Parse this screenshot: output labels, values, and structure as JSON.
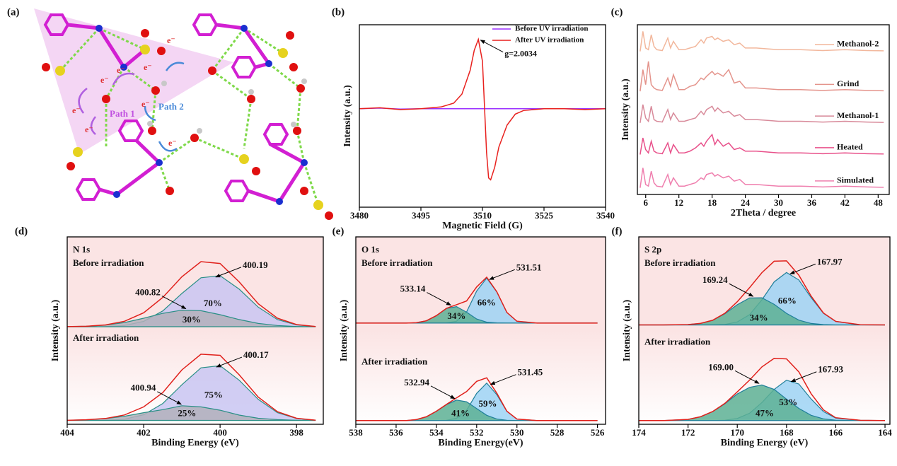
{
  "panel_a": {
    "label": "(a)",
    "path_1": "Path 1",
    "path_2": "Path 2",
    "electron": "e⁻"
  },
  "chart_data": [
    {
      "panel": "(b)",
      "type": "line",
      "xlabel": "Magnetic Field (G)",
      "ylabel": "Intensity (a.u.)",
      "xlim": [
        3480,
        3540
      ],
      "xticks": [
        3480,
        3495,
        3510,
        3525,
        3540
      ],
      "ylim": [
        0,
        100
      ],
      "legend": "upper-right",
      "annotation": "g=2.0034",
      "x": [
        3480,
        3485,
        3490,
        3495,
        3500,
        3503,
        3505,
        3507,
        3508,
        3509,
        3510,
        3510.5,
        3511,
        3511.5,
        3512,
        3513,
        3514,
        3516,
        3518,
        3520,
        3525,
        3530,
        3535,
        3540
      ],
      "series": [
        {
          "name": "Before UV irradiation",
          "color": "#9b30ff",
          "values": [
            54,
            54.3,
            53.8,
            54,
            54,
            54,
            54,
            54,
            54,
            54,
            54,
            54,
            54,
            54,
            54,
            54,
            54,
            54,
            54,
            54,
            54,
            54,
            54,
            54
          ]
        },
        {
          "name": "After UV irradiation",
          "color": "#e8211e",
          "values": [
            54,
            54.5,
            53.5,
            54,
            55,
            57,
            62,
            75,
            86,
            92,
            80,
            55,
            30,
            16,
            15,
            22,
            33,
            45,
            51,
            53,
            54,
            54,
            53.5,
            54
          ]
        }
      ]
    },
    {
      "panel": "(c)",
      "type": "line",
      "xlabel": "2Theta / degree",
      "ylabel": "Intensity (a.u.)",
      "xlim": [
        4.5,
        50
      ],
      "xticks": [
        6,
        12,
        18,
        24,
        30,
        36,
        42,
        48
      ],
      "ylim": [
        0,
        102
      ],
      "legend": "inline",
      "x": [
        5,
        5.5,
        6,
        6.5,
        7,
        7.5,
        8,
        9,
        10,
        10.5,
        11,
        12,
        13,
        14,
        15,
        16,
        16.5,
        17,
        18,
        18.5,
        19,
        20,
        21,
        22,
        23,
        24,
        26,
        28,
        30,
        34,
        38,
        42,
        46,
        49
      ],
      "series": [
        {
          "name": "Methanol-2",
          "color": "#f2b79c",
          "values": [
            86,
            98,
            88,
            87,
            96,
            89,
            87,
            86.5,
            94,
            88,
            92,
            87,
            87,
            88,
            89,
            93,
            91,
            94,
            95,
            93,
            94,
            92,
            93,
            90,
            91,
            88,
            88,
            87.5,
            87,
            87,
            86.5,
            87,
            86.5,
            86.3
          ]
        },
        {
          "name": "Grind",
          "color": "#e4948c",
          "values": [
            62,
            75,
            66,
            80,
            66,
            64,
            63,
            62.5,
            70,
            65,
            72,
            63,
            63,
            65,
            66,
            70,
            69,
            71,
            74,
            72,
            73,
            71,
            75,
            67,
            68,
            64,
            64,
            63.5,
            63,
            63,
            62.5,
            63,
            62.5,
            62.3
          ]
        },
        {
          "name": "Methanol-1",
          "color": "#d88a9a",
          "values": [
            43,
            54,
            46,
            44,
            53,
            45,
            44,
            43.5,
            51,
            45,
            49,
            44,
            44,
            45,
            46,
            50,
            48,
            51,
            53,
            50,
            52,
            49,
            50,
            47,
            48,
            45,
            45,
            44.5,
            44,
            44,
            43.5,
            44,
            43.5,
            43.3
          ]
        },
        {
          "name": "Heated",
          "color": "#e8508a",
          "values": [
            24,
            34,
            27,
            25,
            32,
            26,
            25,
            24.5,
            31,
            25,
            30,
            25,
            25,
            26,
            28,
            31,
            29,
            32,
            36,
            30,
            33,
            29,
            31,
            27,
            28,
            26,
            26,
            25.5,
            25,
            25,
            24.5,
            25,
            24.5,
            24.3
          ]
        },
        {
          "name": "Simulated",
          "color": "#ef7fae",
          "values": [
            4,
            16,
            6,
            5,
            14,
            7,
            5,
            4.5,
            12,
            6,
            10,
            5,
            5,
            6,
            7,
            10,
            9,
            12,
            13,
            11,
            12,
            10,
            11,
            8,
            9,
            6,
            6,
            5.5,
            5,
            5,
            4.5,
            5,
            4.5,
            4.3
          ]
        }
      ]
    },
    {
      "panel": "(d)",
      "type": "area",
      "title": "N 1s",
      "xlabel": "Binding Energy (eV)",
      "ylabel": "Intensity (a.u.)",
      "xlim": [
        404,
        397.3
      ],
      "xticks": [
        404,
        402,
        400,
        398
      ],
      "ylim": [
        0,
        100
      ],
      "envelope_color": "#e0201b",
      "edge_color": "#2a8f86",
      "x": [
        404,
        403.5,
        403,
        402.5,
        402,
        401.5,
        401,
        400.5,
        400,
        399.5,
        399,
        398.5,
        398,
        397.5
      ],
      "states": [
        {
          "label": "Before irradiation",
          "envelope": [
            52.1,
            52.3,
            53,
            55,
            59.5,
            67.7,
            78.7,
            86.8,
            85.8,
            76,
            64.3,
            56.6,
            53.2,
            52.2
          ],
          "components": [
            {
              "peak": 400.19,
              "share_label": "70%",
              "color": "#c9c5f2",
              "values": [
                52,
                52,
                52.1,
                52.7,
                54.9,
                60.5,
                69.8,
                78.2,
                79.3,
                72.1,
                62.5,
                55.9,
                53,
                52.2
              ]
            },
            {
              "peak": 400.82,
              "share_label": "30%",
              "color": "#b3b0bb",
              "values": [
                52.1,
                52.3,
                52.9,
                54.3,
                56.6,
                59.2,
                60.9,
                60.6,
                58.5,
                55.9,
                53.8,
                52.7,
                52.2,
                52
              ]
            }
          ]
        },
        {
          "label": "After irradiation",
          "envelope": [
            2.1,
            2.4,
            3.1,
            5,
            9.3,
            16.9,
            29,
            37.4,
            36.8,
            26.4,
            14.5,
            6.7,
            3.2,
            2.2
          ],
          "components": [
            {
              "peak": 400.17,
              "share_label": "75%",
              "color": "#c9c5f2",
              "values": [
                2,
                2,
                2.1,
                2.7,
                5.1,
                11.1,
                21.1,
                30.1,
                31.3,
                23.5,
                13.3,
                6.2,
                3.1,
                2.2
              ]
            },
            {
              "peak": 400.94,
              "share_label": "25%",
              "color": "#b3b0bb",
              "values": [
                2.1,
                2.4,
                3,
                4.3,
                6.2,
                7.8,
                9.9,
                9.3,
                7.5,
                4.9,
                3.2,
                2.5,
                2.1,
                2
              ]
            }
          ]
        }
      ]
    },
    {
      "panel": "(e)",
      "type": "area",
      "title": "O 1s",
      "xlabel": "Binding Energy(eV)",
      "ylabel": "Intensity (a.u.)",
      "xlim": [
        538,
        525.6
      ],
      "xticks": [
        538,
        536,
        534,
        532,
        530,
        528,
        526
      ],
      "ylim": [
        0,
        100
      ],
      "envelope_color": "#e0201b",
      "edge_color": "#1f7f9a",
      "x": [
        538,
        537,
        536,
        535.5,
        535,
        534.5,
        534,
        533.5,
        533,
        532.5,
        532,
        531.5,
        531,
        530.5,
        530,
        529,
        528,
        527,
        526
      ],
      "states": [
        {
          "label": "Before irradiation",
          "envelope": [
            54,
            54,
            54,
            54,
            54.2,
            55.2,
            58,
            61.9,
            63.8,
            65.8,
            73.3,
            78.5,
            70.7,
            59.7,
            55,
            54,
            54,
            54,
            54
          ],
          "components": [
            {
              "peak": 531.51,
              "share_label": "66%",
              "color": "#9ed3f4",
              "values": [
                54,
                54,
                54,
                54,
                54,
                54,
                54,
                54.1,
                55,
                60,
                71.1,
                78,
                70.6,
                59.7,
                55,
                54,
                54,
                54,
                54
              ]
            },
            {
              "peak": 533.14,
              "share_label": "34%",
              "color": "#5db094",
              "values": [
                54,
                54,
                54,
                54,
                54.2,
                55.2,
                58,
                61.8,
                62.8,
                59.8,
                56.2,
                54.5,
                54.1,
                54,
                54,
                54,
                54,
                54,
                54
              ]
            }
          ]
        },
        {
          "label": "After irradiation",
          "envelope": [
            2,
            2,
            2,
            2,
            2.5,
            4,
            7,
            10.6,
            14.1,
            17.5,
            22.9,
            24.8,
            16.6,
            7,
            2.8,
            2,
            2,
            2,
            2
          ],
          "components": [
            {
              "peak": 531.45,
              "share_label": "59%",
              "color": "#9ed3f4",
              "values": [
                2,
                2,
                2,
                2,
                2,
                2,
                2,
                2.1,
                3.2,
                7.5,
                16.5,
                22,
                15.8,
                6.9,
                2.8,
                2,
                2,
                2,
                2
              ]
            },
            {
              "peak": 532.94,
              "share_label": "41%",
              "color": "#5db094",
              "values": [
                2,
                2,
                2,
                2,
                2.5,
                4,
                7,
                10.5,
                12.9,
                12,
                8.4,
                4.8,
                2.8,
                2.1,
                2,
                2,
                2,
                2,
                2
              ]
            }
          ]
        }
      ]
    },
    {
      "panel": "(f)",
      "type": "area",
      "title": "S 2p",
      "xlabel": "Binding Energy (eV)",
      "ylabel": "Intensity (a.u.)",
      "xlim": [
        174,
        163.8
      ],
      "xticks": [
        174,
        172,
        170,
        168,
        166,
        164
      ],
      "ylim": [
        0,
        100
      ],
      "envelope_color": "#e0201b",
      "edge_color": "#1f7f9a",
      "x": [
        174,
        173,
        172,
        171.5,
        171,
        170.5,
        170,
        169.5,
        169,
        168.5,
        168,
        167.5,
        167,
        166.5,
        166,
        165,
        164
      ],
      "states": [
        {
          "label": "Before irradiation",
          "envelope": [
            53,
            53,
            53.2,
            53.8,
            55.5,
            59.3,
            65.4,
            72.9,
            80.9,
            87,
            87.2,
            79.6,
            68.4,
            59.4,
            54.9,
            53.1,
            53
          ],
          "components": [
            {
              "peak": 167.97,
              "share_label": "66%",
              "color": "#9ed3f4",
              "values": [
                53,
                53,
                53,
                53,
                53,
                53.3,
                54.6,
                58.5,
                66.4,
                76,
                81,
                77,
                67.6,
                59.2,
                54.9,
                53.1,
                53
              ]
            },
            {
              "peak": 169.24,
              "share_label": "34%",
              "color": "#5db094",
              "values": [
                53,
                53,
                53.2,
                53.8,
                55.5,
                59,
                63.8,
                67.4,
                67.5,
                64,
                59.2,
                55.6,
                53.8,
                53.2,
                53,
                53,
                53
              ]
            }
          ]
        },
        {
          "label": "After irradiation",
          "envelope": [
            2,
            2,
            2.6,
            4,
            6.8,
            11.2,
            17.3,
            23.6,
            30.6,
            35.2,
            34.9,
            28,
            16.3,
            7.7,
            3.5,
            2.1,
            2
          ],
          "components": [
            {
              "peak": 167.93,
              "share_label": "53%",
              "color": "#9ed3f4",
              "values": [
                2,
                2,
                2,
                2,
                2,
                2.2,
                3.1,
                5.9,
                11.6,
                18.6,
                23.5,
                21.5,
                13.5,
                6.8,
                3.3,
                2.1,
                2
              ]
            },
            {
              "peak": {
                "value": 169,
                "label": "169.00"
              },
              "share_label": "47%",
              "color": "#5db094",
              "values": [
                2,
                2,
                2.6,
                4,
                6.8,
                11,
                16.2,
                19.7,
                21,
                18.6,
                13.4,
                8.5,
                4.8,
                2.9,
                2.2,
                2,
                2
              ]
            }
          ]
        }
      ]
    }
  ]
}
